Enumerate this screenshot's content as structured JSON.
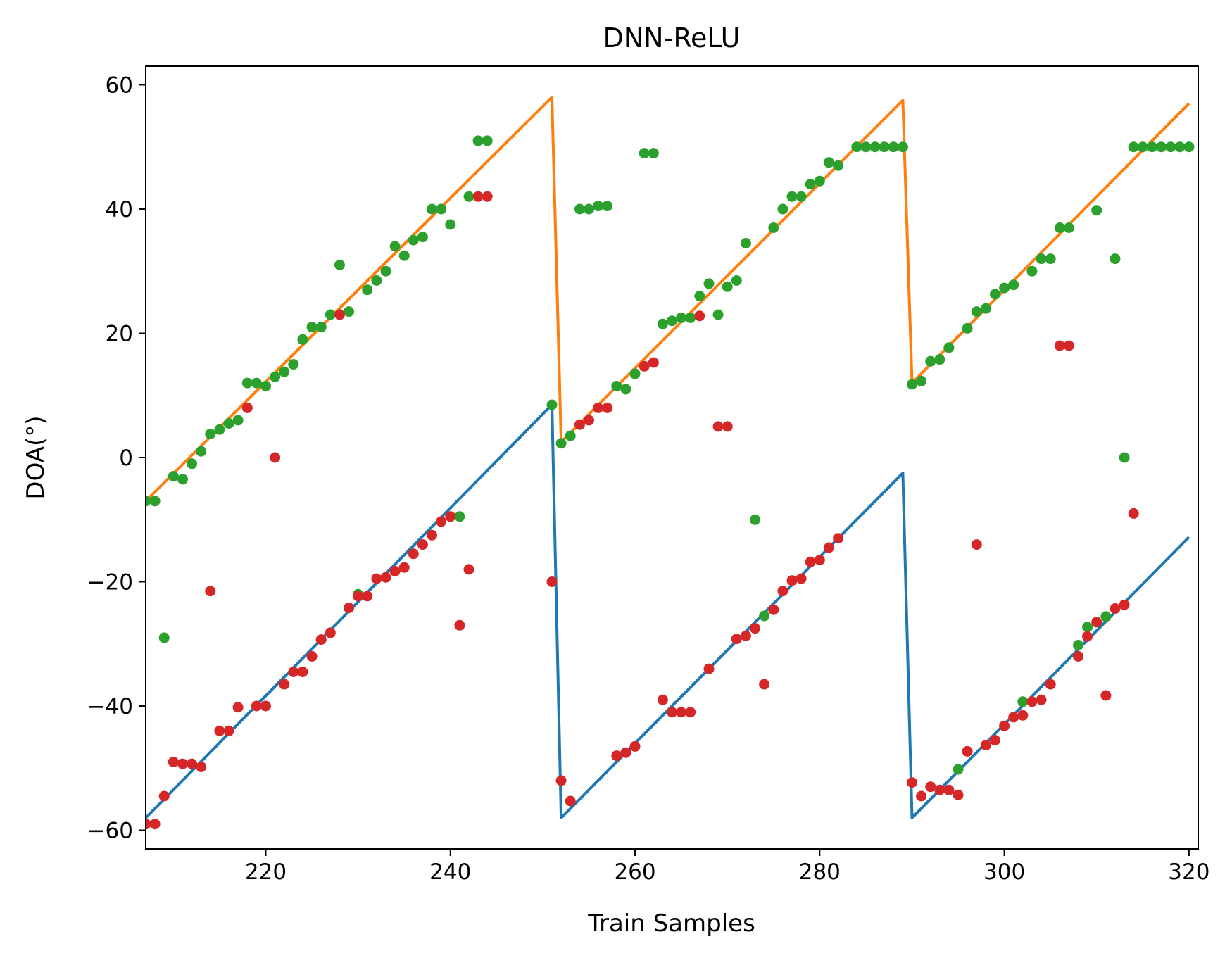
{
  "chart_data": {
    "type": "line",
    "title": "DNN-ReLU",
    "xlabel": "Train Samples",
    "ylabel": "DOA(°)",
    "xlim": [
      207,
      321
    ],
    "ylim": [
      -63,
      63
    ],
    "xticks": [
      220,
      240,
      260,
      280,
      300,
      320
    ],
    "yticks": [
      60,
      40,
      20,
      0,
      -20,
      -40,
      -60
    ],
    "xtick_labels": [
      "220",
      "240",
      "260",
      "280",
      "300",
      "320"
    ],
    "ytick_labels": [
      "60",
      "40",
      "20",
      "0",
      "−20",
      "−40",
      "−60"
    ],
    "grid": false,
    "legend": "none",
    "series": [
      {
        "kind": "line",
        "color": "#1f77b4",
        "points": [
          [
            207,
            -58
          ],
          [
            251,
            8.5
          ],
          [
            252,
            -58
          ],
          [
            289,
            -2.5
          ],
          [
            290,
            -58
          ],
          [
            320,
            -12.8
          ]
        ]
      },
      {
        "kind": "line",
        "color": "#ff7f0e",
        "points": [
          [
            207,
            -7
          ],
          [
            251,
            58
          ],
          [
            252,
            2.5
          ],
          [
            289,
            57.5
          ],
          [
            290,
            12
          ],
          [
            320,
            57
          ]
        ]
      },
      {
        "kind": "scatter",
        "color": "#2ca02c",
        "points": [
          [
            207,
            -7
          ],
          [
            208,
            -7
          ],
          [
            209,
            -29
          ],
          [
            210,
            -3
          ],
          [
            211,
            -3.5
          ],
          [
            212,
            -1
          ],
          [
            213,
            1
          ],
          [
            214,
            3.8
          ],
          [
            215,
            4.5
          ],
          [
            216,
            5.5
          ],
          [
            217,
            6
          ],
          [
            218,
            12
          ],
          [
            219,
            12
          ],
          [
            220,
            11.5
          ],
          [
            221,
            13
          ],
          [
            222,
            13.8
          ],
          [
            223,
            15
          ],
          [
            224,
            19
          ],
          [
            225,
            21
          ],
          [
            226,
            21
          ],
          [
            227,
            23
          ],
          [
            228,
            31
          ],
          [
            229,
            23.5
          ],
          [
            230,
            -22
          ],
          [
            231,
            27
          ],
          [
            232,
            28.5
          ],
          [
            233,
            30
          ],
          [
            234,
            34
          ],
          [
            235,
            32.5
          ],
          [
            236,
            35
          ],
          [
            237,
            35.5
          ],
          [
            238,
            40
          ],
          [
            239,
            40
          ],
          [
            240,
            37.5
          ],
          [
            241,
            -9.5
          ],
          [
            242,
            42
          ],
          [
            243,
            51
          ],
          [
            244,
            51
          ],
          [
            251,
            8.5
          ],
          [
            252,
            2.3
          ],
          [
            253,
            3.5
          ],
          [
            254,
            40
          ],
          [
            255,
            40
          ],
          [
            256,
            40.5
          ],
          [
            257,
            40.5
          ],
          [
            258,
            11.5
          ],
          [
            259,
            11
          ],
          [
            260,
            13.5
          ],
          [
            261,
            49
          ],
          [
            262,
            49
          ],
          [
            263,
            21.5
          ],
          [
            264,
            22
          ],
          [
            265,
            22.5
          ],
          [
            266,
            22.5
          ],
          [
            267,
            26
          ],
          [
            268,
            28
          ],
          [
            269,
            23
          ],
          [
            270,
            27.5
          ],
          [
            271,
            28.5
          ],
          [
            272,
            34.5
          ],
          [
            273,
            -10
          ],
          [
            274,
            -25.5
          ],
          [
            275,
            37
          ],
          [
            276,
            40
          ],
          [
            277,
            42
          ],
          [
            278,
            42
          ],
          [
            279,
            44
          ],
          [
            280,
            44.5
          ],
          [
            281,
            47.5
          ],
          [
            282,
            47
          ],
          [
            284,
            50
          ],
          [
            285,
            50
          ],
          [
            286,
            50
          ],
          [
            287,
            50
          ],
          [
            288,
            50
          ],
          [
            289,
            50
          ],
          [
            290,
            11.8
          ],
          [
            291,
            12.3
          ],
          [
            292,
            15.5
          ],
          [
            293,
            15.8
          ],
          [
            294,
            17.7
          ],
          [
            295,
            -50.2
          ],
          [
            296,
            20.8
          ],
          [
            297,
            23.5
          ],
          [
            298,
            24
          ],
          [
            299,
            26.3
          ],
          [
            300,
            27.3
          ],
          [
            301,
            27.8
          ],
          [
            302,
            -39.3
          ],
          [
            303,
            30
          ],
          [
            304,
            32
          ],
          [
            305,
            32
          ],
          [
            306,
            37
          ],
          [
            307,
            37
          ],
          [
            308,
            -30.2
          ],
          [
            309,
            -27.3
          ],
          [
            310,
            39.8
          ],
          [
            311,
            -25.6
          ],
          [
            312,
            32
          ],
          [
            313,
            0
          ],
          [
            314,
            50
          ],
          [
            315,
            50
          ],
          [
            316,
            50
          ],
          [
            317,
            50
          ],
          [
            318,
            50
          ],
          [
            319,
            50
          ],
          [
            320,
            50
          ]
        ]
      },
      {
        "kind": "scatter",
        "color": "#d62728",
        "points": [
          [
            207,
            -59
          ],
          [
            208,
            -59
          ],
          [
            209,
            -54.5
          ],
          [
            210,
            -49
          ],
          [
            211,
            -49.3
          ],
          [
            212,
            -49.3
          ],
          [
            213,
            -49.8
          ],
          [
            214,
            -21.5
          ],
          [
            215,
            -44
          ],
          [
            216,
            -44
          ],
          [
            217,
            -40.2
          ],
          [
            218,
            8
          ],
          [
            219,
            -40
          ],
          [
            220,
            -40
          ],
          [
            221,
            0
          ],
          [
            222,
            -36.5
          ],
          [
            223,
            -34.5
          ],
          [
            224,
            -34.5
          ],
          [
            225,
            -32
          ],
          [
            226,
            -29.3
          ],
          [
            227,
            -28.2
          ],
          [
            228,
            23
          ],
          [
            229,
            -24.2
          ],
          [
            230,
            -22.3
          ],
          [
            231,
            -22.3
          ],
          [
            232,
            -19.5
          ],
          [
            233,
            -19.3
          ],
          [
            234,
            -18.3
          ],
          [
            235,
            -17.7
          ],
          [
            236,
            -15.5
          ],
          [
            237,
            -14
          ],
          [
            238,
            -12.5
          ],
          [
            239,
            -10.3
          ],
          [
            240,
            -9.5
          ],
          [
            241,
            -27
          ],
          [
            242,
            -18
          ],
          [
            243,
            42
          ],
          [
            244,
            42
          ],
          [
            251,
            -20
          ],
          [
            252,
            -52
          ],
          [
            253,
            -55.3
          ],
          [
            254,
            5.3
          ],
          [
            255,
            6
          ],
          [
            256,
            8
          ],
          [
            257,
            8
          ],
          [
            258,
            -48
          ],
          [
            259,
            -47.5
          ],
          [
            260,
            -46.5
          ],
          [
            261,
            14.7
          ],
          [
            262,
            15.3
          ],
          [
            263,
            -39
          ],
          [
            264,
            -41
          ],
          [
            265,
            -41
          ],
          [
            266,
            -41
          ],
          [
            267,
            22.8
          ],
          [
            268,
            -34
          ],
          [
            269,
            5
          ],
          [
            270,
            5
          ],
          [
            271,
            -29.2
          ],
          [
            272,
            -28.7
          ],
          [
            273,
            -27.5
          ],
          [
            274,
            -36.5
          ],
          [
            275,
            -24.5
          ],
          [
            276,
            -21.5
          ],
          [
            277,
            -19.8
          ],
          [
            278,
            -19.5
          ],
          [
            279,
            -16.8
          ],
          [
            280,
            -16.5
          ],
          [
            281,
            -14.5
          ],
          [
            282,
            -13
          ],
          [
            290,
            -52.3
          ],
          [
            291,
            -54.5
          ],
          [
            292,
            -53
          ],
          [
            293,
            -53.5
          ],
          [
            294,
            -53.5
          ],
          [
            295,
            -54.3
          ],
          [
            296,
            -47.3
          ],
          [
            297,
            -14
          ],
          [
            298,
            -46.3
          ],
          [
            299,
            -45.5
          ],
          [
            300,
            -43.2
          ],
          [
            301,
            -41.8
          ],
          [
            302,
            -41.5
          ],
          [
            303,
            -39.3
          ],
          [
            304,
            -39
          ],
          [
            305,
            -36.5
          ],
          [
            306,
            18
          ],
          [
            307,
            18
          ],
          [
            308,
            -32
          ],
          [
            309,
            -28.8
          ],
          [
            310,
            -26.5
          ],
          [
            311,
            -38.3
          ],
          [
            312,
            -24.3
          ],
          [
            313,
            -23.7
          ],
          [
            314,
            -9
          ]
        ]
      }
    ]
  }
}
